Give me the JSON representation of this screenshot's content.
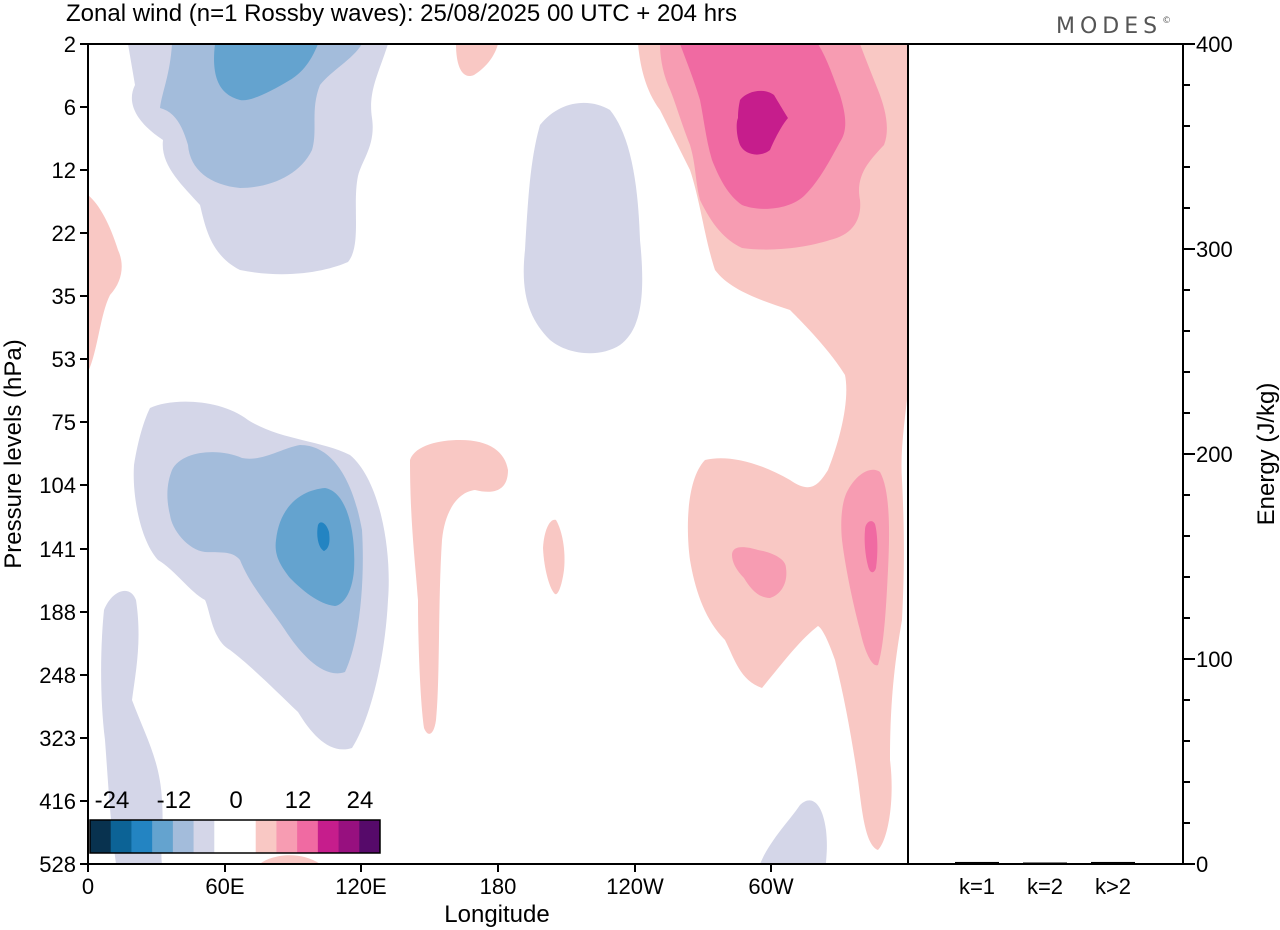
{
  "chart_data": {
    "type": "heatmap",
    "title": "Zonal wind (n=1 Rossby waves):  25/08/2025  00 UTC  + 204 hrs",
    "brand": "MODES",
    "brand_mark": "©",
    "main_panel": {
      "xlabel": "Longitude",
      "ylabel": "Pressure levels (hPa)",
      "x_ticks": [
        "0",
        "60E",
        "120E",
        "180",
        "120W",
        "60W"
      ],
      "x_range_deg": [
        0,
        360
      ],
      "y_ticks": [
        "2",
        "6",
        "12",
        "22",
        "35",
        "53",
        "75",
        "104",
        "141",
        "188",
        "248",
        "323",
        "416",
        "528"
      ],
      "colorbar": {
        "labels": [
          "-24",
          "-12",
          "0",
          "12",
          "24"
        ],
        "colors": [
          "#08324f",
          "#0c6396",
          "#2384c2",
          "#64a3cf",
          "#a3bcdb",
          "#d4d6e8",
          "#ffffff",
          "#ffffff",
          "#f9c8c4",
          "#f79cb2",
          "#f06aa2",
          "#c61d8c",
          "#97107f",
          "#560a6a"
        ]
      },
      "contour_fills": {
        "level1_neg": "#d4d6e8",
        "level2_neg": "#a3bcdb",
        "level3_neg": "#64a3cf",
        "level4_neg": "#2384c2",
        "level1_pos": "#f9c8c4",
        "level2_pos": "#f79cb2",
        "level3_pos": "#f06aa2",
        "level4_pos": "#c61d8c"
      }
    },
    "energy_panel": {
      "ylabel": "Energy (J/kg)",
      "ylim": [
        0,
        400
      ],
      "y_ticks": [
        "0",
        "100",
        "200",
        "300",
        "400"
      ],
      "categories": [
        "k=1",
        "k=2",
        "k>2"
      ],
      "values": [
        1,
        0.5,
        1
      ]
    }
  }
}
